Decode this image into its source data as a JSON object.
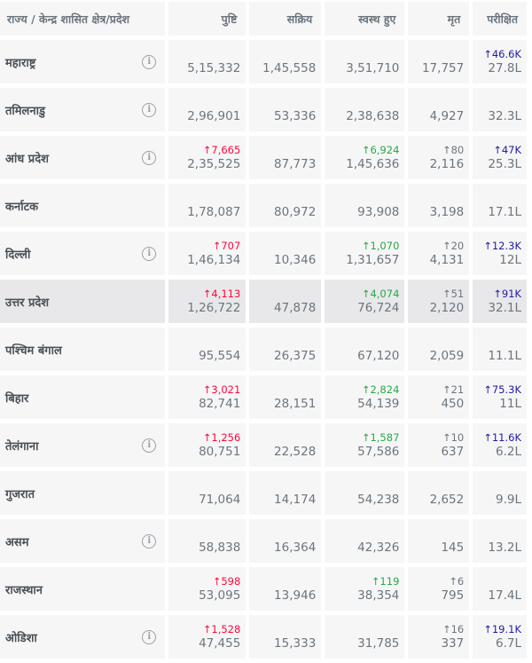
{
  "headers": {
    "state": "राज्य / केन्द्र शासित क्षेत्र/प्रदेश",
    "confirmed": "पुष्टि",
    "active": "सक्रिय",
    "recovered": "स्वस्थ हुए",
    "deceased": "मृत",
    "tested": "परीक्षित"
  },
  "info_glyph": "i",
  "rows": [
    {
      "state": "महाराष्ट्र",
      "info": true,
      "confirmed": "5,15,332",
      "d_confirmed": "",
      "active": "1,45,558",
      "recovered": "3,51,710",
      "d_recovered": "",
      "deceased": "17,757",
      "d_deceased": "",
      "tested": "27.8L",
      "d_tested": "↑46.6K"
    },
    {
      "state": "तमिलनाडु",
      "info": true,
      "confirmed": "2,96,901",
      "d_confirmed": "",
      "active": "53,336",
      "recovered": "2,38,638",
      "d_recovered": "",
      "deceased": "4,927",
      "d_deceased": "",
      "tested": "32.3L",
      "d_tested": ""
    },
    {
      "state": "आंध प्रदेश",
      "info": true,
      "confirmed": "2,35,525",
      "d_confirmed": "↑7,665",
      "active": "87,773",
      "recovered": "1,45,636",
      "d_recovered": "↑6,924",
      "deceased": "2,116",
      "d_deceased": "↑80",
      "tested": "25.3L",
      "d_tested": "↑47K"
    },
    {
      "state": "कर्नाटक",
      "info": false,
      "confirmed": "1,78,087",
      "d_confirmed": "",
      "active": "80,972",
      "recovered": "93,908",
      "d_recovered": "",
      "deceased": "3,198",
      "d_deceased": "",
      "tested": "17.1L",
      "d_tested": ""
    },
    {
      "state": "दिल्ली",
      "info": true,
      "confirmed": "1,46,134",
      "d_confirmed": "↑707",
      "active": "10,346",
      "recovered": "1,31,657",
      "d_recovered": "↑1,070",
      "deceased": "4,131",
      "d_deceased": "↑20",
      "tested": "12L",
      "d_tested": "↑12.3K"
    },
    {
      "state": "उत्तर प्रदेश",
      "info": false,
      "highlight": true,
      "confirmed": "1,26,722",
      "d_confirmed": "↑4,113",
      "active": "47,878",
      "recovered": "76,724",
      "d_recovered": "↑4,074",
      "deceased": "2,120",
      "d_deceased": "↑51",
      "tested": "32.1L",
      "d_tested": "↑91K"
    },
    {
      "state": "पश्चिम बंगाल",
      "info": false,
      "confirmed": "95,554",
      "d_confirmed": "",
      "active": "26,375",
      "recovered": "67,120",
      "d_recovered": "",
      "deceased": "2,059",
      "d_deceased": "",
      "tested": "11.1L",
      "d_tested": ""
    },
    {
      "state": "बिहार",
      "info": false,
      "confirmed": "82,741",
      "d_confirmed": "↑3,021",
      "active": "28,151",
      "recovered": "54,139",
      "d_recovered": "↑2,824",
      "deceased": "450",
      "d_deceased": "↑21",
      "tested": "11L",
      "d_tested": "↑75.3K"
    },
    {
      "state": "तेलंगाना",
      "info": true,
      "confirmed": "80,751",
      "d_confirmed": "↑1,256",
      "active": "22,528",
      "recovered": "57,586",
      "d_recovered": "↑1,587",
      "deceased": "637",
      "d_deceased": "↑10",
      "tested": "6.2L",
      "d_tested": "↑11.6K"
    },
    {
      "state": "गुजरात",
      "info": false,
      "confirmed": "71,064",
      "d_confirmed": "",
      "active": "14,174",
      "recovered": "54,238",
      "d_recovered": "",
      "deceased": "2,652",
      "d_deceased": "",
      "tested": "9.9L",
      "d_tested": ""
    },
    {
      "state": "असम",
      "info": true,
      "confirmed": "58,838",
      "d_confirmed": "",
      "active": "16,364",
      "recovered": "42,326",
      "d_recovered": "",
      "deceased": "145",
      "d_deceased": "",
      "tested": "13.2L",
      "d_tested": ""
    },
    {
      "state": "राजस्थान",
      "info": false,
      "confirmed": "53,095",
      "d_confirmed": "↑598",
      "active": "13,946",
      "recovered": "38,354",
      "d_recovered": "↑119",
      "deceased": "795",
      "d_deceased": "↑6",
      "tested": "17.4L",
      "d_tested": ""
    },
    {
      "state": "ओडिशा",
      "info": true,
      "confirmed": "47,455",
      "d_confirmed": "↑1,528",
      "active": "15,333",
      "recovered": "31,785",
      "d_recovered": "",
      "deceased": "337",
      "d_deceased": "↑16",
      "tested": "6.7L",
      "d_tested": "↑19.1K"
    }
  ],
  "colors": {
    "confirmed_delta": "#ff073a",
    "recovered_delta": "#28a745",
    "deceased_delta": "#6c757d",
    "tested_delta": "#201aa2",
    "cell_bg": "#f6f6f7",
    "highlight_bg": "#e8e8ea"
  }
}
